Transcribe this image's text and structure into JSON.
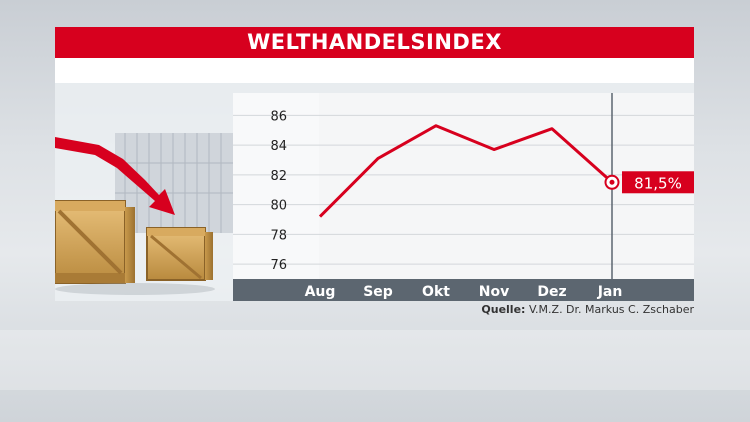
{
  "header": {
    "title": "WELTHANDELSINDEX"
  },
  "source": {
    "label": "Quelle:",
    "text": "V.M.Z. Dr. Markus C. Zschaber"
  },
  "chart_data": {
    "type": "line",
    "title": "WELTHANDELSINDEX",
    "categories": [
      "Aug",
      "Sep",
      "Okt",
      "Nov",
      "Dez",
      "Jan"
    ],
    "series": [
      {
        "values": [
          79.2,
          83.1,
          85.3,
          83.7,
          85.1,
          81.5
        ]
      }
    ],
    "yticks": [
      "86",
      "84",
      "82",
      "80",
      "78",
      "76"
    ],
    "ylim": [
      75,
      87.5
    ],
    "grid": true,
    "annotation": {
      "category": "Jan",
      "value": 81.5,
      "label": "81,5%"
    },
    "colors": {
      "line": "#d7001e",
      "accent": "#d7001e",
      "axis_bar": "#5c6670"
    }
  }
}
